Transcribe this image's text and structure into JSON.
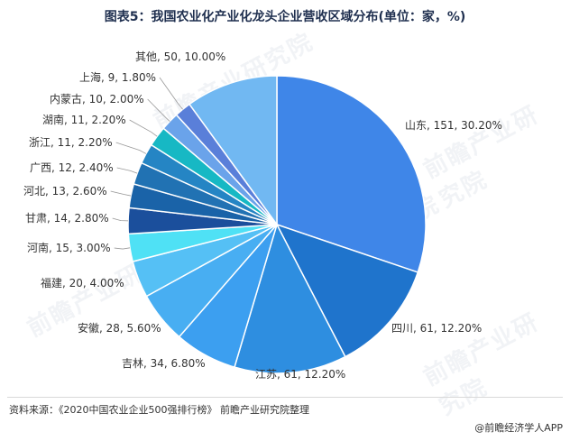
{
  "page": {
    "title": "图表5：我国农业化产业化龙头企业营收区域分布(单位：家，%)",
    "source": "资料来源：《2020中国农业企业500强排行榜》 前瞻产业研究院整理",
    "brand": "@前瞻经济学人APP",
    "watermark": "前瞻产业研究院"
  },
  "chart_data": {
    "type": "pie",
    "title": "图表5：我国农业化产业化龙头企业营收区域分布(单位：家，%)",
    "slices": [
      {
        "name": "山东",
        "value": 151,
        "percent": 30.2,
        "color": "#3f86e8",
        "label": "山东, 151, 30.20%"
      },
      {
        "name": "四川",
        "value": 61,
        "percent": 12.2,
        "color": "#1f74cc",
        "label": "四川, 61, 12.20%"
      },
      {
        "name": "江苏",
        "value": 61,
        "percent": 12.2,
        "color": "#2e8ee0",
        "label": "江苏, 61, 12.20%"
      },
      {
        "name": "吉林",
        "value": 34,
        "percent": 6.8,
        "color": "#3c9ff0",
        "label": "吉林, 34, 6.80%"
      },
      {
        "name": "安徽",
        "value": 28,
        "percent": 5.6,
        "color": "#48aef2",
        "label": "安徽, 28, 5.60%"
      },
      {
        "name": "福建",
        "value": 20,
        "percent": 4.0,
        "color": "#55c0f5",
        "label": "福建, 20, 4.00%"
      },
      {
        "name": "河南",
        "value": 15,
        "percent": 3.0,
        "color": "#4fe1f5",
        "label": "河南, 15, 3.00%"
      },
      {
        "name": "甘肃",
        "value": 14,
        "percent": 2.8,
        "color": "#1b4f9c",
        "label": "甘肃, 14, 2.80%"
      },
      {
        "name": "河北",
        "value": 13,
        "percent": 2.6,
        "color": "#1a63a8",
        "label": "河北, 13, 2.60%"
      },
      {
        "name": "广西",
        "value": 12,
        "percent": 2.4,
        "color": "#2172b3",
        "label": "广西, 12, 2.40%"
      },
      {
        "name": "浙江",
        "value": 11,
        "percent": 2.2,
        "color": "#2585c4",
        "label": "浙江, 11, 2.20%"
      },
      {
        "name": "湖南",
        "value": 11,
        "percent": 2.2,
        "color": "#17b8c4",
        "label": "湖南, 11, 2.20%"
      },
      {
        "name": "内蒙古",
        "value": 10,
        "percent": 2.0,
        "color": "#6aa3ea",
        "label": "内蒙古, 10, 2.00%"
      },
      {
        "name": "上海",
        "value": 9,
        "percent": 1.8,
        "color": "#5a7fd9",
        "label": "上海, 9, 1.80%"
      },
      {
        "name": "其他",
        "value": 50,
        "percent": 10.0,
        "color": "#71b8f2",
        "label": "其他, 50, 10.00%"
      }
    ]
  }
}
